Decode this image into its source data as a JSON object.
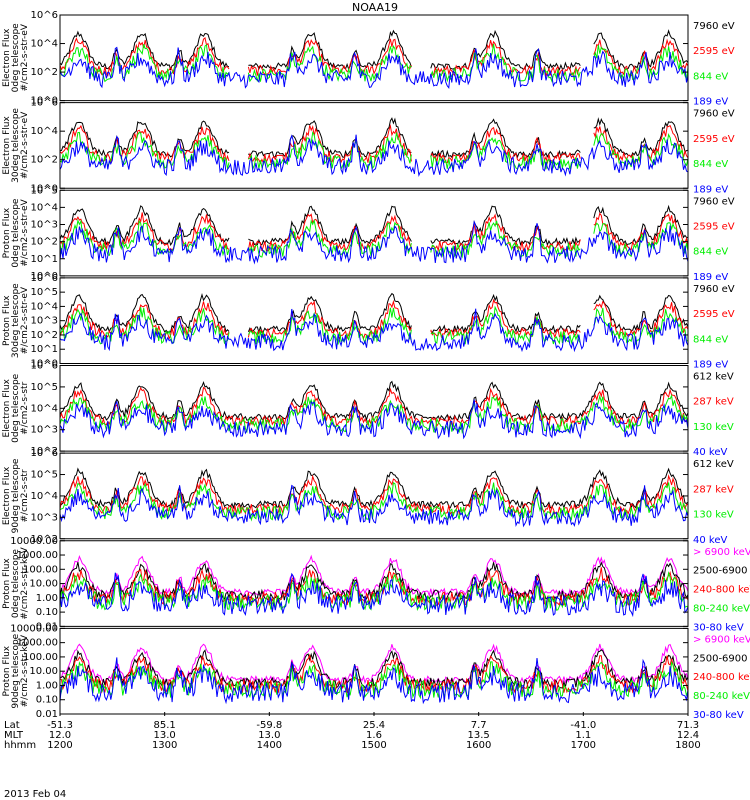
{
  "title": "NOAA19",
  "date": "2013 Feb 04",
  "colors": {
    "black": "#000000",
    "red": "#ff0000",
    "green": "#00ee00",
    "blue": "#0000ff",
    "magenta": "#ff00ff"
  },
  "x_axis": {
    "row_labels": [
      "Lat",
      "MLT",
      "hhmm"
    ],
    "ticks": [
      {
        "lat": "-51.3",
        "mlt": "12.0",
        "hhmm": "1200"
      },
      {
        "lat": "85.1",
        "mlt": "13.0",
        "hhmm": "1300"
      },
      {
        "lat": "-59.8",
        "mlt": "13.0",
        "hhmm": "1400"
      },
      {
        "lat": "25.4",
        "mlt": "1.6",
        "hhmm": "1500"
      },
      {
        "lat": "7.7",
        "mlt": "13.5",
        "hhmm": "1600"
      },
      {
        "lat": "-41.0",
        "mlt": "1.1",
        "hhmm": "1700"
      },
      {
        "lat": "71.3",
        "mlt": "12.4",
        "hhmm": "1800"
      }
    ]
  },
  "chart_data": [
    {
      "type": "line",
      "ylabel": [
        "TED",
        "Electron Flux",
        "0deg telescope",
        "#/cm2-s-str-eV"
      ],
      "yscale": "log",
      "ylim": [
        1,
        1000000
      ],
      "yticks": [
        "10^0",
        "10^2",
        "10^4",
        "10^6"
      ],
      "series": [
        {
          "name": "7960 eV",
          "color": "#000000"
        },
        {
          "name": "2595 eV",
          "color": "#ff0000"
        },
        {
          "name": "844 eV",
          "color": "#00ee00"
        },
        {
          "name": "189 eV",
          "color": "#0000ff"
        }
      ]
    },
    {
      "type": "line",
      "ylabel": [
        "TED",
        "Electron Flux",
        "30deg telescope",
        "#/cm2-s-str-eV"
      ],
      "yscale": "log",
      "ylim": [
        1,
        1000000
      ],
      "yticks": [
        "10^0",
        "10^2",
        "10^4",
        "10^6"
      ],
      "series": [
        {
          "name": "7960 eV",
          "color": "#000000"
        },
        {
          "name": "2595 eV",
          "color": "#ff0000"
        },
        {
          "name": "844 eV",
          "color": "#00ee00"
        },
        {
          "name": "189 eV",
          "color": "#0000ff"
        }
      ]
    },
    {
      "type": "line",
      "ylabel": [
        "TED",
        "Proton Flux",
        "0deg telescope",
        "#/cm2-s-str-eV"
      ],
      "yscale": "log",
      "ylim": [
        1,
        100000
      ],
      "yticks": [
        "10^0",
        "10^1",
        "10^2",
        "10^3",
        "10^4",
        "10^5"
      ],
      "series": [
        {
          "name": "7960 eV",
          "color": "#000000"
        },
        {
          "name": "2595 eV",
          "color": "#ff0000"
        },
        {
          "name": "844 eV",
          "color": "#00ee00"
        },
        {
          "name": "189 eV",
          "color": "#0000ff"
        }
      ]
    },
    {
      "type": "line",
      "ylabel": [
        "TED",
        "Proton Flux",
        "30deg telescope",
        "#/cm2-s-str-eV"
      ],
      "yscale": "log",
      "ylim": [
        1,
        1000000
      ],
      "yticks": [
        "10^0",
        "10^1",
        "10^2",
        "10^3",
        "10^4",
        "10^5",
        "10^6"
      ],
      "series": [
        {
          "name": "7960 eV",
          "color": "#000000"
        },
        {
          "name": "2595 eV",
          "color": "#ff0000"
        },
        {
          "name": "844 eV",
          "color": "#00ee00"
        },
        {
          "name": "189 eV",
          "color": "#0000ff"
        }
      ]
    },
    {
      "type": "line",
      "ylabel": [
        "MEPED",
        "Electron Flux",
        "0deg telescope",
        "#/cm2-s-str"
      ],
      "yscale": "log",
      "ylim": [
        100,
        1000000
      ],
      "yticks": [
        "10^2",
        "10^3",
        "10^4",
        "10^5",
        "10^6"
      ],
      "series": [
        {
          "name": "612 keV",
          "color": "#000000"
        },
        {
          "name": "287 keV",
          "color": "#ff0000"
        },
        {
          "name": "130 keV",
          "color": "#00ee00"
        },
        {
          "name": "40 keV",
          "color": "#0000ff"
        }
      ]
    },
    {
      "type": "line",
      "ylabel": [
        "MEPED",
        "Electron Flux",
        "90deg telescope",
        "#/cm2-s-str"
      ],
      "yscale": "log",
      "ylim": [
        100,
        1000000
      ],
      "yticks": [
        "10^2",
        "10^3",
        "10^4",
        "10^5",
        "10^6"
      ],
      "series": [
        {
          "name": "612 keV",
          "color": "#000000"
        },
        {
          "name": "287 keV",
          "color": "#ff0000"
        },
        {
          "name": "130 keV",
          "color": "#00ee00"
        },
        {
          "name": "40 keV",
          "color": "#0000ff"
        }
      ]
    },
    {
      "type": "line",
      "ylabel": [
        "MEPED",
        "Proton Flux",
        "0deg telescope",
        "#/cm2-s-str-keV"
      ],
      "yscale": "log",
      "ylim": [
        0.01,
        10000
      ],
      "yticks": [
        "0.01",
        "0.10",
        "1.00",
        "10.00",
        "100.00",
        "1000.00",
        "10000.00"
      ],
      "series": [
        {
          "name": "> 6900 keV",
          "color": "#ff00ff"
        },
        {
          "name": "2500-6900",
          "color": "#000000"
        },
        {
          "name": "240-800 keV",
          "color": "#ff0000"
        },
        {
          "name": "80-240 keV",
          "color": "#00ee00"
        },
        {
          "name": "30-80 keV",
          "color": "#0000ff"
        }
      ]
    },
    {
      "type": "line",
      "ylabel": [
        "MEPED",
        "Proton Flux",
        "90deg telescope",
        "#/cm2-s-str-keV"
      ],
      "yscale": "log",
      "ylim": [
        0.01,
        10000
      ],
      "yticks": [
        "0.01",
        "0.10",
        "1.00",
        "10.00",
        "100.00",
        "1000.00",
        "10000.00"
      ],
      "series": [
        {
          "name": "> 6900 keV",
          "color": "#ff00ff"
        },
        {
          "name": "2500-6900",
          "color": "#000000"
        },
        {
          "name": "240-800 keV",
          "color": "#ff0000"
        },
        {
          "name": "80-240 keV",
          "color": "#00ee00"
        },
        {
          "name": "30-80 keV",
          "color": "#0000ff"
        }
      ]
    }
  ]
}
